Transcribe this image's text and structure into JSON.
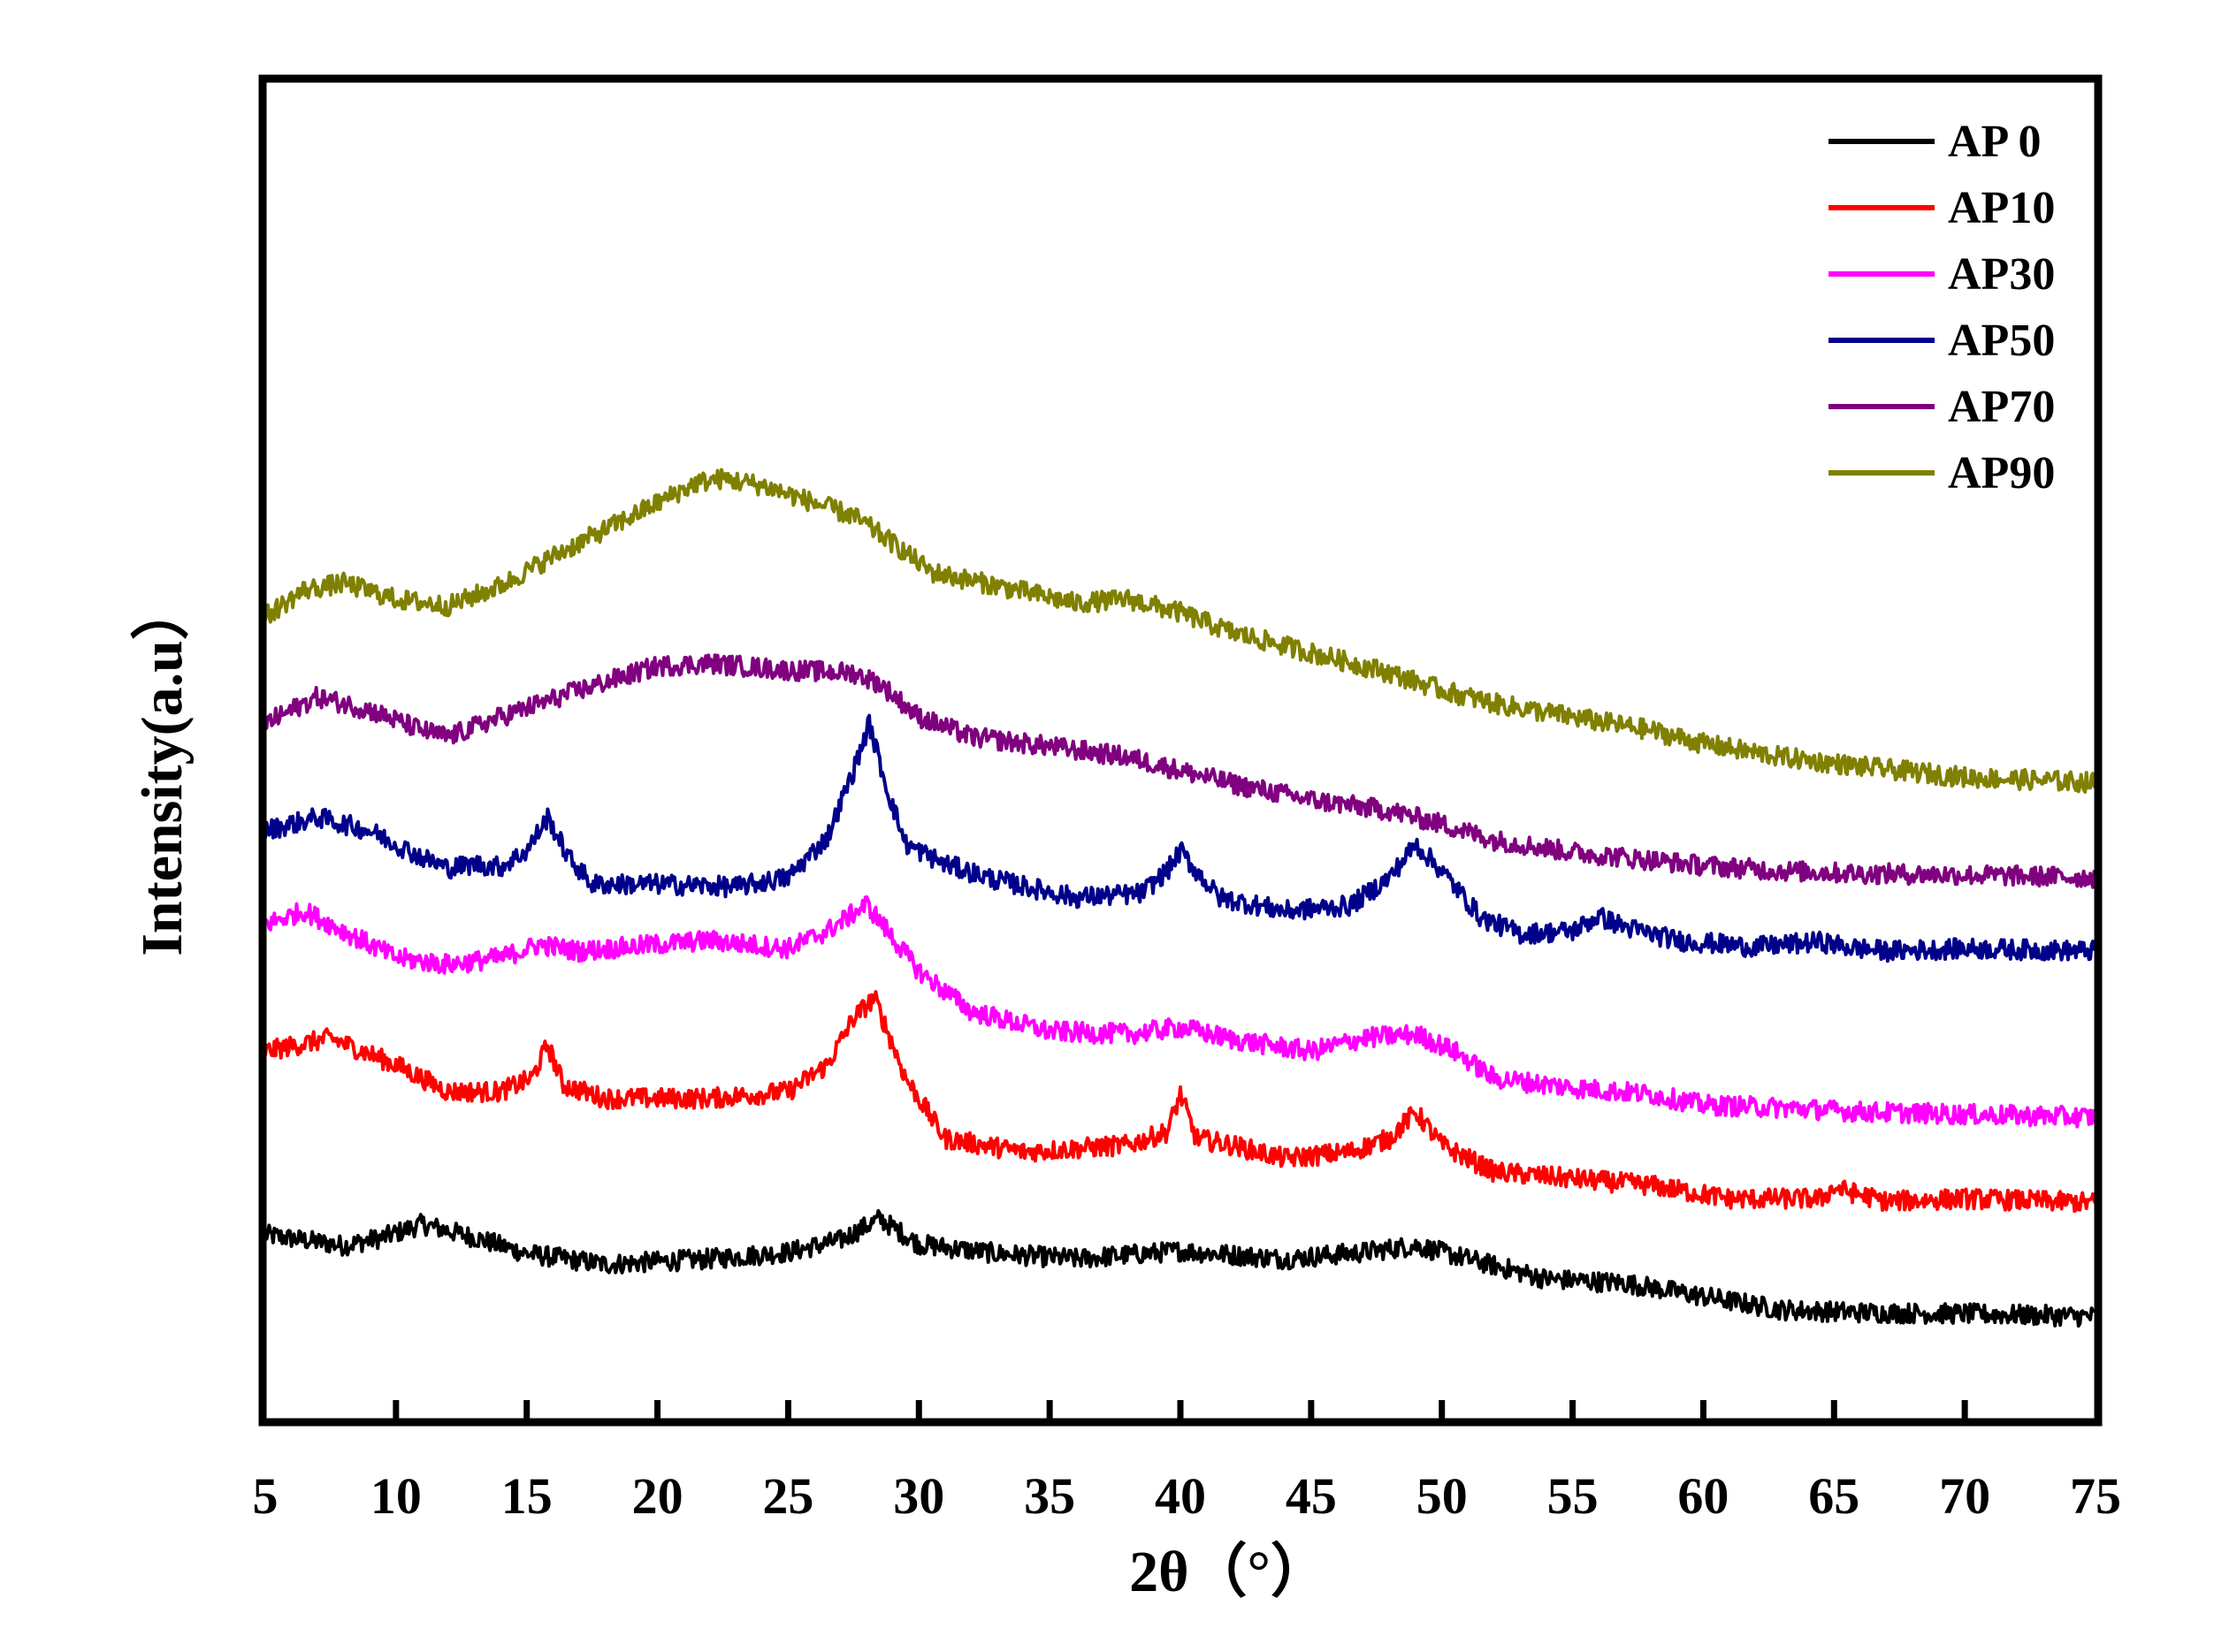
{
  "chart_data": {
    "type": "line",
    "title": "",
    "xlabel": "2θ（°）",
    "ylabel": "Intensity(a.u）",
    "xlim": [
      5,
      75
    ],
    "ylim": [
      0,
      100
    ],
    "xticks": [
      5,
      10,
      15,
      20,
      25,
      30,
      35,
      40,
      45,
      50,
      55,
      60,
      65,
      70,
      75
    ],
    "yticks": [],
    "grid": false,
    "legend_position": "top-right",
    "legend": [
      "AP 0",
      "AP10",
      "AP30",
      "AP50",
      "AP70",
      "AP90"
    ],
    "series": [
      {
        "name": "AP 0",
        "color": "#000000",
        "x": [
          5,
          8,
          9.5,
          11,
          13,
          15,
          18,
          22,
          25,
          27,
          28.5,
          30,
          33,
          36,
          40,
          44,
          47,
          49,
          51,
          54,
          57,
          60,
          63,
          66,
          70,
          75
        ],
        "y": [
          13.8,
          13.0,
          13.6,
          14.6,
          13.6,
          12.4,
          11.6,
          12.0,
          12.5,
          13.4,
          15.0,
          13.1,
          12.4,
          12.0,
          12.6,
          12.0,
          12.5,
          13.0,
          12.0,
          10.5,
          10.2,
          9.2,
          8.2,
          8.0,
          7.9,
          7.7
        ]
      },
      {
        "name": "AP10",
        "color": "#ff0000",
        "x": [
          5,
          7.5,
          10,
          12,
          14,
          15.2,
          15.8,
          16.4,
          18,
          22,
          25,
          26.5,
          27.5,
          28.3,
          29.5,
          31,
          34,
          38,
          39.5,
          40,
          40.6,
          42,
          44,
          46.5,
          48,
          49,
          50,
          52,
          55,
          58,
          61,
          64.5,
          65,
          67,
          70,
          75
        ],
        "y": [
          27.5,
          28.5,
          26.5,
          24.5,
          24.5,
          25.5,
          28.0,
          25.0,
          24.0,
          24.0,
          24.5,
          26.5,
          30.0,
          31.5,
          25.5,
          21.0,
          20.0,
          20.5,
          21.5,
          24.3,
          21.0,
          20.5,
          19.5,
          20.0,
          21.0,
          23.0,
          20.5,
          18.5,
          18.0,
          17.5,
          16.5,
          16.5,
          17.3,
          16.3,
          16.5,
          16.2
        ]
      },
      {
        "name": "AP30",
        "color": "#ff00ff",
        "x": [
          5,
          6.5,
          8,
          10,
          12,
          14,
          15.5,
          17,
          20,
          22,
          25,
          26.5,
          28,
          29,
          30,
          32,
          35,
          38,
          40,
          42,
          45,
          47,
          49,
          50.5,
          52,
          55,
          58,
          60,
          63,
          66,
          70,
          75
        ],
        "y": [
          37.0,
          38.0,
          36.5,
          34.5,
          34.0,
          34.5,
          35.5,
          35.0,
          35.5,
          35.8,
          35.2,
          36.5,
          38.5,
          36.0,
          33.5,
          30.5,
          29.0,
          28.8,
          29.3,
          28.4,
          27.5,
          28.5,
          28.8,
          27.5,
          25.5,
          24.8,
          24.3,
          23.5,
          23.3,
          23.0,
          22.8,
          22.6
        ]
      },
      {
        "name": "AP50",
        "color": "#00008b",
        "x": [
          5,
          7,
          9,
          11,
          12,
          13,
          14,
          15,
          15.8,
          16.6,
          17.5,
          20,
          23,
          25,
          26.5,
          27.5,
          28.1,
          28.8,
          29.5,
          31,
          33,
          36,
          38.5,
          39.5,
          40,
          40.6,
          41.5,
          44,
          46.5,
          48,
          49,
          50,
          51.5,
          53,
          55,
          56,
          57,
          59,
          62,
          64.5,
          65.5,
          67,
          70,
          75
        ],
        "y": [
          44.0,
          45.0,
          44.0,
          42.0,
          41.2,
          41.5,
          41.3,
          42.5,
          45.0,
          42.0,
          40.0,
          40.0,
          39.8,
          40.5,
          43.5,
          48.5,
          52.0,
          47.0,
          43.0,
          41.5,
          40.3,
          39.0,
          39.3,
          41.0,
          42.5,
          41.0,
          39.0,
          38.0,
          38.4,
          40.5,
          43.0,
          41.0,
          37.5,
          36.3,
          36.5,
          37.6,
          36.8,
          35.8,
          35.3,
          35.7,
          35.3,
          35.0,
          35.2,
          35.0
        ]
      },
      {
        "name": "AP70",
        "color": "#800080",
        "x": [
          5,
          7,
          9,
          11,
          12,
          14,
          17,
          20,
          22,
          25,
          27.5,
          28.5,
          30,
          32,
          35,
          38,
          40,
          42,
          45,
          48,
          50,
          52,
          55,
          58,
          60,
          63,
          66,
          70,
          75
        ],
        "y": [
          52.0,
          54.0,
          53.0,
          51.5,
          51.0,
          52.5,
          54.5,
          56.3,
          56.5,
          56.0,
          55.8,
          55.0,
          52.5,
          51.0,
          50.3,
          49.5,
          48.5,
          47.5,
          46.3,
          45.5,
          44.5,
          43.3,
          42.4,
          41.8,
          41.4,
          41.0,
          40.8,
          40.7,
          40.5
        ]
      },
      {
        "name": "AP90",
        "color": "#808000",
        "x": [
          5,
          6.5,
          8,
          10,
          12,
          14,
          16,
          18,
          20,
          21.5,
          22.5,
          24,
          26,
          27.5,
          29,
          30.5,
          33,
          36,
          38,
          40,
          42,
          45,
          48,
          50,
          52,
          55,
          58,
          60,
          63,
          66,
          70,
          75
        ],
        "y": [
          60.0,
          62.0,
          62.5,
          61.3,
          60.8,
          62.3,
          64.5,
          66.5,
          68.5,
          70.0,
          70.3,
          69.8,
          68.5,
          67.5,
          65.5,
          63.3,
          62.3,
          61.0,
          61.3,
          60.3,
          58.8,
          57.3,
          55.8,
          54.5,
          53.5,
          52.5,
          51.5,
          50.5,
          49.5,
          48.8,
          48.0,
          47.6
        ]
      }
    ]
  }
}
